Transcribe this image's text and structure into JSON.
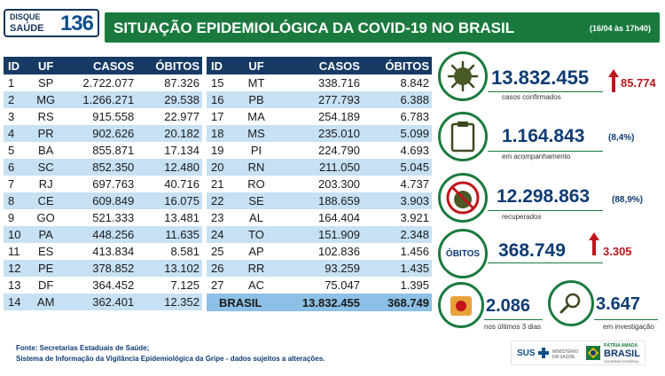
{
  "header": {
    "logo_line1": "DISQUE",
    "logo_line2": "SAÚDE",
    "logo_number": "136",
    "title": "SITUAÇÃO EPIDEMIOLÓGICA DA COVID-19 NO BRASIL",
    "subtitle": "(16/04 às 17h40)"
  },
  "table_headers": [
    "ID",
    "UF",
    "CASOS",
    "ÓBITOS"
  ],
  "table_left": [
    [
      "1",
      "SP",
      "2.722.077",
      "87.326"
    ],
    [
      "2",
      "MG",
      "1.266.271",
      "29.538"
    ],
    [
      "3",
      "RS",
      "915.558",
      "22.977"
    ],
    [
      "4",
      "PR",
      "902.626",
      "20.182"
    ],
    [
      "5",
      "BA",
      "855.871",
      "17.134"
    ],
    [
      "6",
      "SC",
      "852.350",
      "12.480"
    ],
    [
      "7",
      "RJ",
      "697.763",
      "40.716"
    ],
    [
      "8",
      "CE",
      "609.849",
      "16.075"
    ],
    [
      "9",
      "GO",
      "521.333",
      "13.481"
    ],
    [
      "10",
      "PA",
      "448.256",
      "11.635"
    ],
    [
      "11",
      "ES",
      "413.834",
      "8.581"
    ],
    [
      "12",
      "PE",
      "378.852",
      "13.102"
    ],
    [
      "13",
      "DF",
      "364.452",
      "7.125"
    ],
    [
      "14",
      "AM",
      "362.401",
      "12.352"
    ]
  ],
  "table_right": [
    [
      "15",
      "MT",
      "338.716",
      "8.842"
    ],
    [
      "16",
      "PB",
      "277.793",
      "6.388"
    ],
    [
      "17",
      "MA",
      "254.189",
      "6.783"
    ],
    [
      "18",
      "MS",
      "235.010",
      "5.099"
    ],
    [
      "19",
      "PI",
      "224.790",
      "4.693"
    ],
    [
      "20",
      "RN",
      "211.050",
      "5.045"
    ],
    [
      "21",
      "RO",
      "203.300",
      "4.737"
    ],
    [
      "22",
      "SE",
      "188.659",
      "3.903"
    ],
    [
      "23",
      "AL",
      "164.404",
      "3.921"
    ],
    [
      "24",
      "TO",
      "151.909",
      "2.348"
    ],
    [
      "25",
      "AP",
      "102.836",
      "1.456"
    ],
    [
      "26",
      "RR",
      "93.259",
      "1.435"
    ],
    [
      "27",
      "AC",
      "75.047",
      "1.395"
    ]
  ],
  "brasil_row": {
    "label": "BRASIL",
    "casos": "13.832.455",
    "obitos": "368.749"
  },
  "stats": {
    "confirmed": {
      "value": "13.832.455",
      "label": "casos confirmados",
      "delta": "85.774"
    },
    "monitoring": {
      "value": "1.164.843",
      "pct": "(8,4%)",
      "label": "em acompanhamento"
    },
    "recovered": {
      "value": "12.298.863",
      "pct": "(88,9%)",
      "label": "recuperados"
    },
    "deaths": {
      "badge": "ÓBITOS",
      "value": "368.749",
      "delta": "3.305"
    },
    "last3": {
      "value": "2.086",
      "label": "nos últimos 3 dias"
    },
    "investigation": {
      "value": "3.647",
      "label": "em investigação"
    }
  },
  "footer": {
    "line1": "Fonte: Secretarias Estaduais de Saúde;",
    "line2": "Sistema de Informação da Vigilância Epidemiológica da Gripe - dados sujeitos a alterações."
  },
  "gov_logos": {
    "sus": "SUS",
    "ministry": "MINISTÉRIO DA SAÚDE",
    "motto": "PÁTRIA AMADA",
    "brasil": "BRASIL",
    "gov": "GOVERNO FEDERAL"
  }
}
